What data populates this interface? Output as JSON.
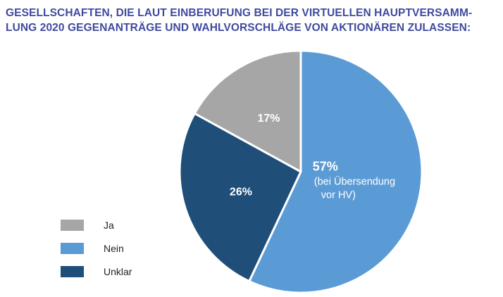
{
  "title_lines": [
    "GESELLSCHAFTEN, DIE LAUT EINBERUFUNG BEI DER VIRTUELLEN HAUPTVERSAMM-",
    "LUNG 2020 GEGENANTRÄGE UND WAHLVORSCHLÄGE VON AKTIONÄREN ZULASSEN:"
  ],
  "chart_data": {
    "type": "pie",
    "title": "GESELLSCHAFTEN, DIE LAUT EINBERUFUNG BEI DER VIRTUELLEN HAUPTVERSAMMLUNG 2020 GEGENANTRÄGE UND WAHLVORSCHLÄGE VON AKTIONÄREN ZULASSEN:",
    "slices": [
      {
        "label": "Nein",
        "value": 57,
        "value_label": "57%",
        "note_lines": [
          "(bei Übersendung",
          "vor HV)"
        ],
        "color": "#5b9bd5"
      },
      {
        "label": "Unklar",
        "value": 26,
        "value_label": "26%",
        "note_lines": [],
        "color": "#1f4e79"
      },
      {
        "label": "Ja",
        "value": 17,
        "value_label": "17%",
        "note_lines": [],
        "color": "#a6a6a6"
      }
    ],
    "legend_order": [
      "Ja",
      "Nein",
      "Unklar"
    ],
    "legend_position": "left"
  }
}
